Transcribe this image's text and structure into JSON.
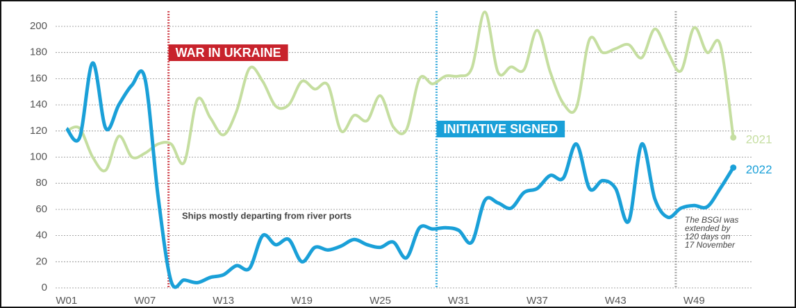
{
  "chart_data": {
    "type": "line",
    "x": [
      1,
      2,
      3,
      4,
      5,
      6,
      7,
      8,
      9,
      10,
      11,
      12,
      13,
      14,
      15,
      16,
      17,
      18,
      19,
      20,
      21,
      22,
      23,
      24,
      25,
      26,
      27,
      28,
      29,
      30,
      31,
      32,
      33,
      34,
      35,
      36,
      37,
      38,
      39,
      40,
      41,
      42,
      43,
      44,
      45,
      46,
      47,
      48,
      49,
      50,
      51,
      52
    ],
    "series": [
      {
        "name": "2021",
        "color": "#c5dea0",
        "values": [
          120,
          122,
          100,
          90,
          116,
          100,
          103,
          110,
          110,
          96,
          144,
          130,
          117,
          135,
          168,
          158,
          139,
          140,
          158,
          152,
          155,
          120,
          132,
          128,
          147,
          123,
          121,
          160,
          156,
          162,
          162,
          168,
          211,
          165,
          169,
          167,
          197,
          165,
          141,
          138,
          190,
          180,
          183,
          186,
          176,
          198,
          180,
          166,
          199,
          180,
          186,
          115
        ]
      },
      {
        "name": "2022",
        "color": "#1aa0d8",
        "values": [
          122,
          115,
          172,
          122,
          140,
          155,
          160,
          70,
          5,
          6,
          4,
          8,
          10,
          17,
          15,
          40,
          33,
          37,
          20,
          31,
          29,
          32,
          37,
          33,
          31,
          35,
          23,
          46,
          45,
          46,
          44,
          35,
          67,
          65,
          61,
          73,
          76,
          86,
          84,
          110,
          76,
          82,
          76,
          51,
          110,
          68,
          54,
          61,
          63,
          62,
          76,
          92
        ]
      }
    ],
    "xlim": [
      0,
      56
    ],
    "xticks": [
      {
        "value": 1,
        "label": "W01"
      },
      {
        "value": 7,
        "label": "W07"
      },
      {
        "value": 13,
        "label": "W13"
      },
      {
        "value": 19,
        "label": "W19"
      },
      {
        "value": 25,
        "label": "W25"
      },
      {
        "value": 31,
        "label": "W31"
      },
      {
        "value": 37,
        "label": "W37"
      },
      {
        "value": 43,
        "label": "W43"
      },
      {
        "value": 49,
        "label": "W49"
      }
    ],
    "ylim": [
      0,
      200
    ],
    "yticks": [
      0,
      20,
      40,
      60,
      80,
      100,
      120,
      140,
      160,
      180,
      200
    ],
    "grid": true,
    "events": [
      {
        "label": "WAR IN UKRAINE",
        "x": 8.8,
        "color": "#c8232c"
      },
      {
        "label": "INITIATIVE SIGNED",
        "x": 29.3,
        "color": "#1aa0d8"
      },
      {
        "x": 47.6,
        "color": "#999999"
      }
    ],
    "annotations": [
      {
        "text": "Ships mostly departing from river ports"
      },
      {
        "lines": [
          "The BSGI was",
          "extended by",
          "120 days on",
          "17 November"
        ]
      }
    ]
  }
}
